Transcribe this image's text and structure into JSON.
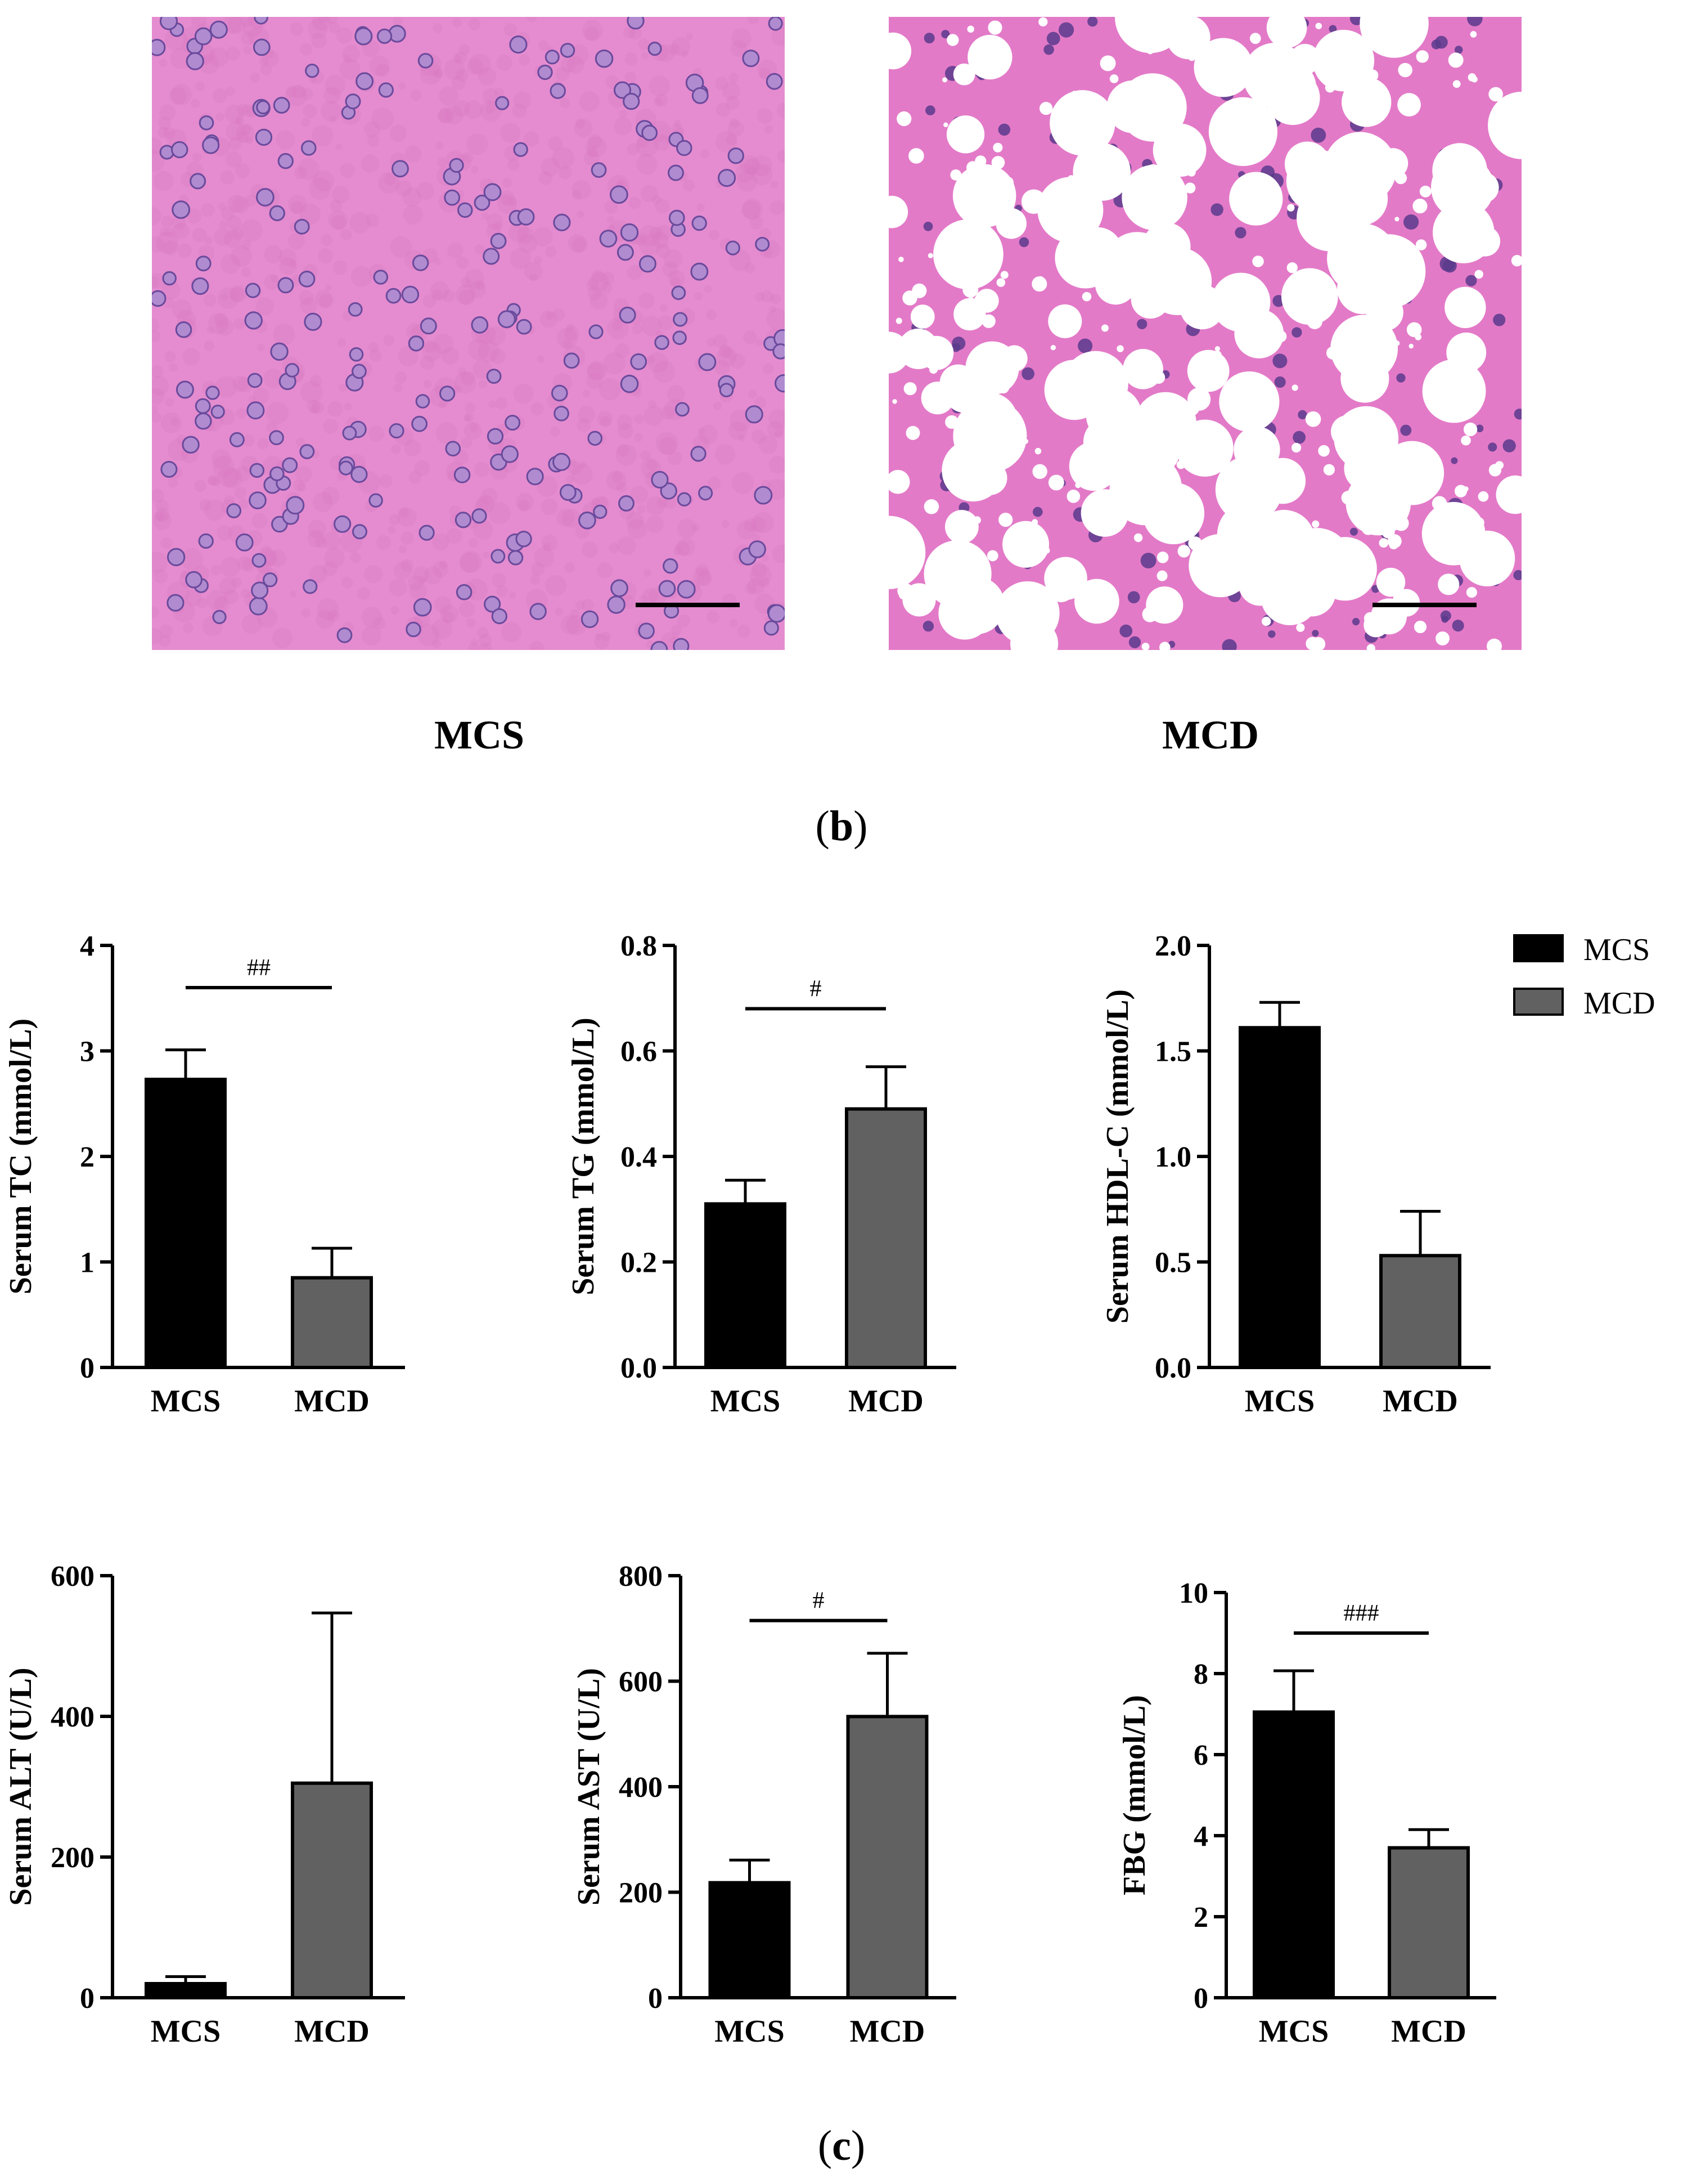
{
  "panels": {
    "b": {
      "label": "b"
    },
    "c": {
      "label": "c"
    }
  },
  "images": [
    {
      "caption": "MCS",
      "description": "H&E liver section, normal hepatocytes",
      "colors": {
        "background": "#e48ccf",
        "nuclei": "#6a4a9c"
      }
    },
    {
      "caption": "MCD",
      "description": "H&E liver section with lipid droplets",
      "colors": {
        "background": "#e37ac8",
        "droplets": "#ffffff",
        "nuclei": "#5a3a8c"
      }
    }
  ],
  "legend": [
    {
      "label": "MCS",
      "color": "#000000"
    },
    {
      "label": "MCD",
      "color": "#616161"
    }
  ],
  "colors": {
    "MCS": "#000000",
    "MCD": "#616161",
    "axis": "#000000"
  },
  "chart_data": [
    {
      "type": "bar",
      "ylabel": "Serum TC (mmol/L)",
      "categories": [
        "MCS",
        "MCD"
      ],
      "values": [
        2.73,
        0.85
      ],
      "errors": [
        0.28,
        0.28
      ],
      "ylim": [
        0,
        4
      ],
      "yticks": [
        0,
        1,
        2,
        3,
        4
      ],
      "ytick_labels": [
        "0",
        "1",
        "2",
        "3",
        "4"
      ],
      "annotation": "##",
      "annotation_y": 3.6
    },
    {
      "type": "bar",
      "ylabel": "Serum TG (mmol/L)",
      "categories": [
        "MCS",
        "MCD"
      ],
      "values": [
        0.31,
        0.49
      ],
      "errors": [
        0.045,
        0.08
      ],
      "ylim": [
        0,
        0.8
      ],
      "yticks": [
        0,
        0.2,
        0.4,
        0.6,
        0.8
      ],
      "ytick_labels": [
        "0.0",
        "0.2",
        "0.4",
        "0.6",
        "0.8"
      ],
      "annotation": "#",
      "annotation_y": 0.68
    },
    {
      "type": "bar",
      "ylabel": "Serum HDL-C (mmol/L)",
      "categories": [
        "MCS",
        "MCD"
      ],
      "values": [
        1.61,
        0.53
      ],
      "errors": [
        0.12,
        0.21
      ],
      "ylim": [
        0,
        2.0
      ],
      "yticks": [
        0,
        0.5,
        1.0,
        1.5,
        2.0
      ],
      "ytick_labels": [
        "0.0",
        "0.5",
        "1.0",
        "1.5",
        "2.0"
      ],
      "annotation": "",
      "annotation_y": null
    },
    {
      "type": "bar",
      "ylabel": "Serum ALT (U/L)",
      "categories": [
        "MCS",
        "MCD"
      ],
      "values": [
        20,
        305
      ],
      "errors": [
        10,
        242
      ],
      "ylim": [
        0,
        600
      ],
      "yticks": [
        0,
        200,
        400,
        600
      ],
      "ytick_labels": [
        "0",
        "200",
        "400",
        "600"
      ],
      "annotation": "",
      "annotation_y": null
    },
    {
      "type": "bar",
      "ylabel": "Serum AST (U/L)",
      "categories": [
        "MCS",
        "MCD"
      ],
      "values": [
        218,
        533
      ],
      "errors": [
        43,
        120
      ],
      "ylim": [
        0,
        800
      ],
      "yticks": [
        0,
        200,
        400,
        600,
        800
      ],
      "ytick_labels": [
        "0",
        "200",
        "400",
        "600",
        "800"
      ],
      "annotation": "#",
      "annotation_y": 715
    },
    {
      "type": "bar",
      "ylabel": "FBG (mmol/L)",
      "categories": [
        "MCS",
        "MCD"
      ],
      "values": [
        7.05,
        3.7
      ],
      "errors": [
        1.02,
        0.45
      ],
      "ylim": [
        0,
        10
      ],
      "yticks": [
        0,
        2,
        4,
        6,
        8,
        10
      ],
      "ytick_labels": [
        "0",
        "2",
        "4",
        "6",
        "8",
        "10"
      ],
      "annotation": "###",
      "annotation_y": 9.0
    }
  ]
}
